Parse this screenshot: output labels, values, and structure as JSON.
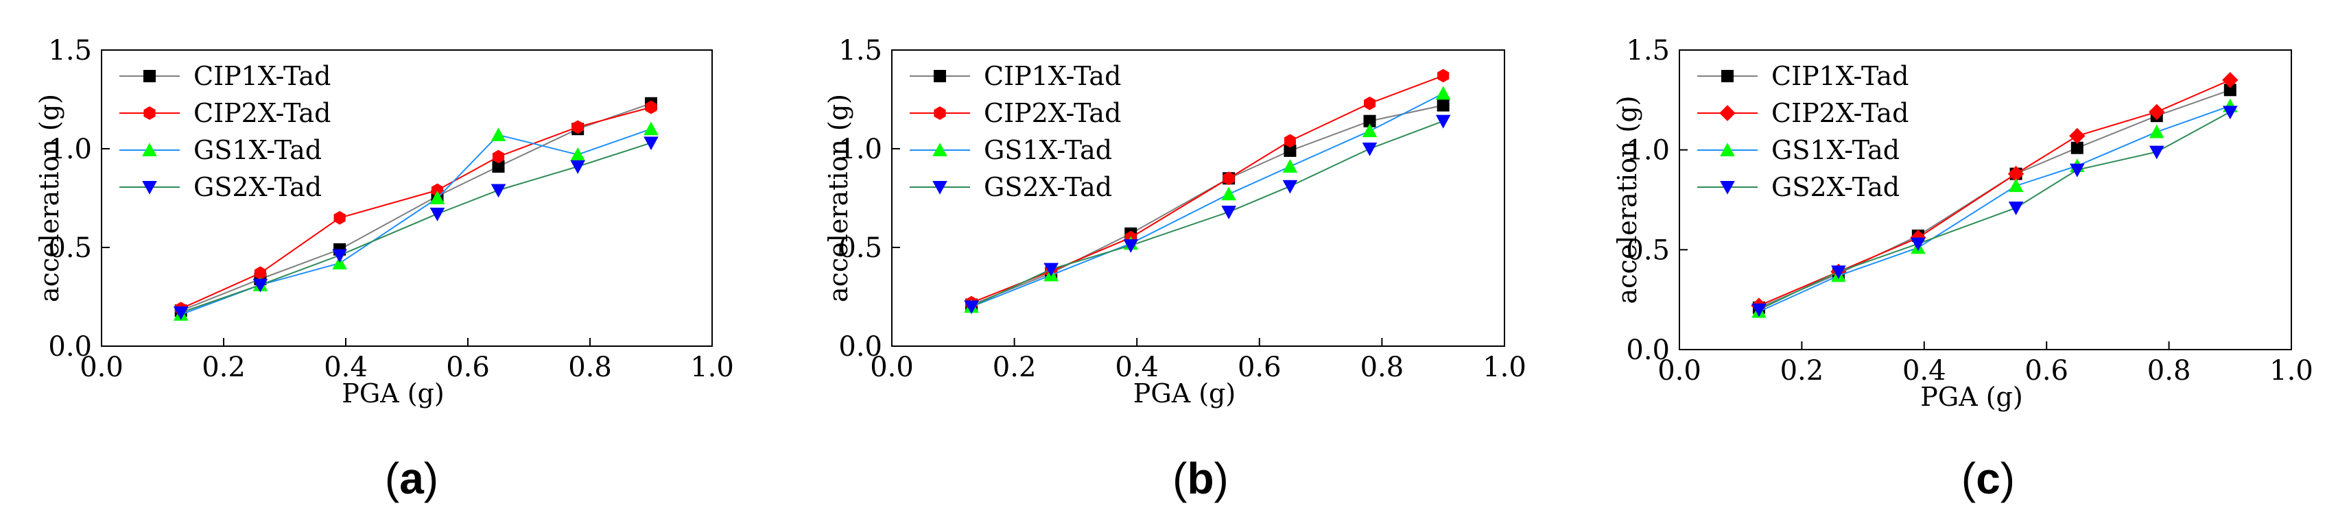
{
  "chart_data": [
    {
      "type": "line",
      "panel_label": "a",
      "caption_open": "(",
      "caption_close": ")",
      "xlabel": "PGA (g)",
      "ylabel": "acceleration (g)",
      "xlim": [
        0.0,
        1.0
      ],
      "ylim": [
        0.0,
        1.5
      ],
      "xticks": [
        "0.0",
        "0.2",
        "0.4",
        "0.6",
        "0.8",
        "1.0"
      ],
      "yticks": [
        "0.0",
        "0.5",
        "1.0",
        "1.5"
      ],
      "grid": false,
      "legend_position": "top-left",
      "x": [
        0.13,
        0.26,
        0.39,
        0.55,
        0.65,
        0.78,
        0.9
      ],
      "series": [
        {
          "name": "CIP1X-Tad",
          "color": "#000000",
          "line_color": "#7f7f7f",
          "marker": "square",
          "values": [
            0.18,
            0.34,
            0.49,
            0.76,
            0.91,
            1.1,
            1.23
          ]
        },
        {
          "name": "CIP2X-Tad",
          "color": "#ff0000",
          "line_color": "#ff0000",
          "marker": "hexagon",
          "values": [
            0.19,
            0.37,
            0.65,
            0.79,
            0.96,
            1.11,
            1.21
          ]
        },
        {
          "name": "GS1X-Tad",
          "color": "#00ff00",
          "line_color": "#1e90ff",
          "marker": "triangle-up",
          "values": [
            0.16,
            0.31,
            0.42,
            0.75,
            1.07,
            0.97,
            1.1
          ]
        },
        {
          "name": "GS2X-Tad",
          "color": "#0000ff",
          "line_color": "#2e8b57",
          "marker": "triangle-down",
          "values": [
            0.17,
            0.31,
            0.46,
            0.67,
            0.79,
            0.91,
            1.03
          ]
        }
      ]
    },
    {
      "type": "line",
      "panel_label": "b",
      "caption_open": "(",
      "caption_close": ")",
      "xlabel": "PGA (g)",
      "ylabel": "acceleration (g)",
      "xlim": [
        0.0,
        1.0
      ],
      "ylim": [
        0.0,
        1.5
      ],
      "xticks": [
        "0.0",
        "0.2",
        "0.4",
        "0.6",
        "0.8",
        "1.0"
      ],
      "yticks": [
        "0.0",
        "0.5",
        "1.0",
        "1.5"
      ],
      "grid": false,
      "legend_position": "top-left",
      "x": [
        0.13,
        0.26,
        0.39,
        0.55,
        0.65,
        0.78,
        0.9
      ],
      "series": [
        {
          "name": "CIP1X-Tad",
          "color": "#000000",
          "line_color": "#7f7f7f",
          "marker": "square",
          "values": [
            0.21,
            0.37,
            0.57,
            0.85,
            0.99,
            1.14,
            1.22
          ]
        },
        {
          "name": "CIP2X-Tad",
          "color": "#ff0000",
          "line_color": "#ff0000",
          "marker": "hexagon",
          "values": [
            0.22,
            0.38,
            0.55,
            0.85,
            1.04,
            1.23,
            1.37
          ]
        },
        {
          "name": "GS1X-Tad",
          "color": "#00ff00",
          "line_color": "#1e90ff",
          "marker": "triangle-up",
          "values": [
            0.2,
            0.36,
            0.52,
            0.77,
            0.91,
            1.09,
            1.28
          ]
        },
        {
          "name": "GS2X-Tad",
          "color": "#0000ff",
          "line_color": "#2e8b57",
          "marker": "triangle-down",
          "values": [
            0.2,
            0.39,
            0.51,
            0.68,
            0.81,
            1.0,
            1.14
          ]
        }
      ]
    },
    {
      "type": "line",
      "panel_label": "c",
      "caption_open": "(",
      "caption_close": ")",
      "xlabel": "PGA (g)",
      "ylabel": "acceleration (g)",
      "xlim": [
        0.0,
        1.0
      ],
      "ylim": [
        0.0,
        1.5
      ],
      "xticks": [
        "0.0",
        "0.2",
        "0.4",
        "0.6",
        "0.8",
        "1.0"
      ],
      "yticks": [
        "0.0",
        "0.5",
        "1.0",
        "1.5"
      ],
      "grid": false,
      "legend_position": "top-left",
      "x": [
        0.13,
        0.26,
        0.39,
        0.55,
        0.65,
        0.78,
        0.9
      ],
      "series": [
        {
          "name": "CIP1X-Tad",
          "color": "#000000",
          "line_color": "#7f7f7f",
          "marker": "square",
          "values": [
            0.21,
            0.38,
            0.57,
            0.88,
            1.01,
            1.17,
            1.3
          ]
        },
        {
          "name": "CIP2X-Tad",
          "color": "#ff0000",
          "line_color": "#ff0000",
          "marker": "diamond",
          "values": [
            0.22,
            0.39,
            0.56,
            0.88,
            1.07,
            1.19,
            1.35
          ]
        },
        {
          "name": "GS1X-Tad",
          "color": "#00ff00",
          "line_color": "#1e90ff",
          "marker": "triangle-up",
          "values": [
            0.19,
            0.37,
            0.51,
            0.82,
            0.92,
            1.09,
            1.22
          ]
        },
        {
          "name": "GS2X-Tad",
          "color": "#0000ff",
          "line_color": "#2e8b57",
          "marker": "triangle-down",
          "values": [
            0.2,
            0.39,
            0.53,
            0.71,
            0.9,
            0.99,
            1.19
          ]
        }
      ]
    }
  ]
}
